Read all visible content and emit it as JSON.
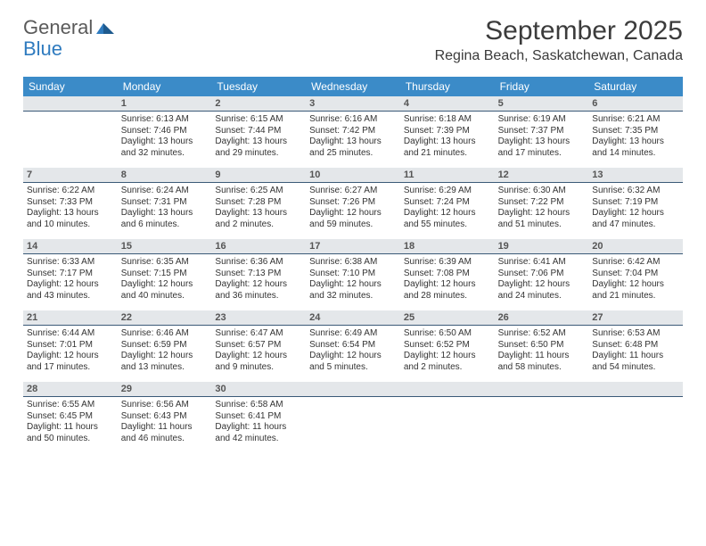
{
  "brand": {
    "part1": "General",
    "part2": "Blue"
  },
  "colors": {
    "header_band": "#3b8bc8",
    "daynum_bg": "#e4e7ea",
    "daynum_border": "#3b5a78",
    "text_dark": "#3b3b3b",
    "text_body": "#333333",
    "logo_gray": "#5a5a5a",
    "logo_blue": "#2f7bbf",
    "background": "#ffffff"
  },
  "title": {
    "month": "September 2025",
    "location": "Regina Beach, Saskatchewan, Canada",
    "month_fontsize": 30,
    "location_fontsize": 16
  },
  "day_headers": [
    "Sunday",
    "Monday",
    "Tuesday",
    "Wednesday",
    "Thursday",
    "Friday",
    "Saturday"
  ],
  "weeks": [
    [
      {
        "empty": true
      },
      {
        "day": "1",
        "sunrise": "Sunrise: 6:13 AM",
        "sunset": "Sunset: 7:46 PM",
        "daylight": "Daylight: 13 hours and 32 minutes."
      },
      {
        "day": "2",
        "sunrise": "Sunrise: 6:15 AM",
        "sunset": "Sunset: 7:44 PM",
        "daylight": "Daylight: 13 hours and 29 minutes."
      },
      {
        "day": "3",
        "sunrise": "Sunrise: 6:16 AM",
        "sunset": "Sunset: 7:42 PM",
        "daylight": "Daylight: 13 hours and 25 minutes."
      },
      {
        "day": "4",
        "sunrise": "Sunrise: 6:18 AM",
        "sunset": "Sunset: 7:39 PM",
        "daylight": "Daylight: 13 hours and 21 minutes."
      },
      {
        "day": "5",
        "sunrise": "Sunrise: 6:19 AM",
        "sunset": "Sunset: 7:37 PM",
        "daylight": "Daylight: 13 hours and 17 minutes."
      },
      {
        "day": "6",
        "sunrise": "Sunrise: 6:21 AM",
        "sunset": "Sunset: 7:35 PM",
        "daylight": "Daylight: 13 hours and 14 minutes."
      }
    ],
    [
      {
        "day": "7",
        "sunrise": "Sunrise: 6:22 AM",
        "sunset": "Sunset: 7:33 PM",
        "daylight": "Daylight: 13 hours and 10 minutes."
      },
      {
        "day": "8",
        "sunrise": "Sunrise: 6:24 AM",
        "sunset": "Sunset: 7:31 PM",
        "daylight": "Daylight: 13 hours and 6 minutes."
      },
      {
        "day": "9",
        "sunrise": "Sunrise: 6:25 AM",
        "sunset": "Sunset: 7:28 PM",
        "daylight": "Daylight: 13 hours and 2 minutes."
      },
      {
        "day": "10",
        "sunrise": "Sunrise: 6:27 AM",
        "sunset": "Sunset: 7:26 PM",
        "daylight": "Daylight: 12 hours and 59 minutes."
      },
      {
        "day": "11",
        "sunrise": "Sunrise: 6:29 AM",
        "sunset": "Sunset: 7:24 PM",
        "daylight": "Daylight: 12 hours and 55 minutes."
      },
      {
        "day": "12",
        "sunrise": "Sunrise: 6:30 AM",
        "sunset": "Sunset: 7:22 PM",
        "daylight": "Daylight: 12 hours and 51 minutes."
      },
      {
        "day": "13",
        "sunrise": "Sunrise: 6:32 AM",
        "sunset": "Sunset: 7:19 PM",
        "daylight": "Daylight: 12 hours and 47 minutes."
      }
    ],
    [
      {
        "day": "14",
        "sunrise": "Sunrise: 6:33 AM",
        "sunset": "Sunset: 7:17 PM",
        "daylight": "Daylight: 12 hours and 43 minutes."
      },
      {
        "day": "15",
        "sunrise": "Sunrise: 6:35 AM",
        "sunset": "Sunset: 7:15 PM",
        "daylight": "Daylight: 12 hours and 40 minutes."
      },
      {
        "day": "16",
        "sunrise": "Sunrise: 6:36 AM",
        "sunset": "Sunset: 7:13 PM",
        "daylight": "Daylight: 12 hours and 36 minutes."
      },
      {
        "day": "17",
        "sunrise": "Sunrise: 6:38 AM",
        "sunset": "Sunset: 7:10 PM",
        "daylight": "Daylight: 12 hours and 32 minutes."
      },
      {
        "day": "18",
        "sunrise": "Sunrise: 6:39 AM",
        "sunset": "Sunset: 7:08 PM",
        "daylight": "Daylight: 12 hours and 28 minutes."
      },
      {
        "day": "19",
        "sunrise": "Sunrise: 6:41 AM",
        "sunset": "Sunset: 7:06 PM",
        "daylight": "Daylight: 12 hours and 24 minutes."
      },
      {
        "day": "20",
        "sunrise": "Sunrise: 6:42 AM",
        "sunset": "Sunset: 7:04 PM",
        "daylight": "Daylight: 12 hours and 21 minutes."
      }
    ],
    [
      {
        "day": "21",
        "sunrise": "Sunrise: 6:44 AM",
        "sunset": "Sunset: 7:01 PM",
        "daylight": "Daylight: 12 hours and 17 minutes."
      },
      {
        "day": "22",
        "sunrise": "Sunrise: 6:46 AM",
        "sunset": "Sunset: 6:59 PM",
        "daylight": "Daylight: 12 hours and 13 minutes."
      },
      {
        "day": "23",
        "sunrise": "Sunrise: 6:47 AM",
        "sunset": "Sunset: 6:57 PM",
        "daylight": "Daylight: 12 hours and 9 minutes."
      },
      {
        "day": "24",
        "sunrise": "Sunrise: 6:49 AM",
        "sunset": "Sunset: 6:54 PM",
        "daylight": "Daylight: 12 hours and 5 minutes."
      },
      {
        "day": "25",
        "sunrise": "Sunrise: 6:50 AM",
        "sunset": "Sunset: 6:52 PM",
        "daylight": "Daylight: 12 hours and 2 minutes."
      },
      {
        "day": "26",
        "sunrise": "Sunrise: 6:52 AM",
        "sunset": "Sunset: 6:50 PM",
        "daylight": "Daylight: 11 hours and 58 minutes."
      },
      {
        "day": "27",
        "sunrise": "Sunrise: 6:53 AM",
        "sunset": "Sunset: 6:48 PM",
        "daylight": "Daylight: 11 hours and 54 minutes."
      }
    ],
    [
      {
        "day": "28",
        "sunrise": "Sunrise: 6:55 AM",
        "sunset": "Sunset: 6:45 PM",
        "daylight": "Daylight: 11 hours and 50 minutes."
      },
      {
        "day": "29",
        "sunrise": "Sunrise: 6:56 AM",
        "sunset": "Sunset: 6:43 PM",
        "daylight": "Daylight: 11 hours and 46 minutes."
      },
      {
        "day": "30",
        "sunrise": "Sunrise: 6:58 AM",
        "sunset": "Sunset: 6:41 PM",
        "daylight": "Daylight: 11 hours and 42 minutes."
      },
      {
        "empty": true
      },
      {
        "empty": true
      },
      {
        "empty": true
      },
      {
        "empty": true
      }
    ]
  ]
}
